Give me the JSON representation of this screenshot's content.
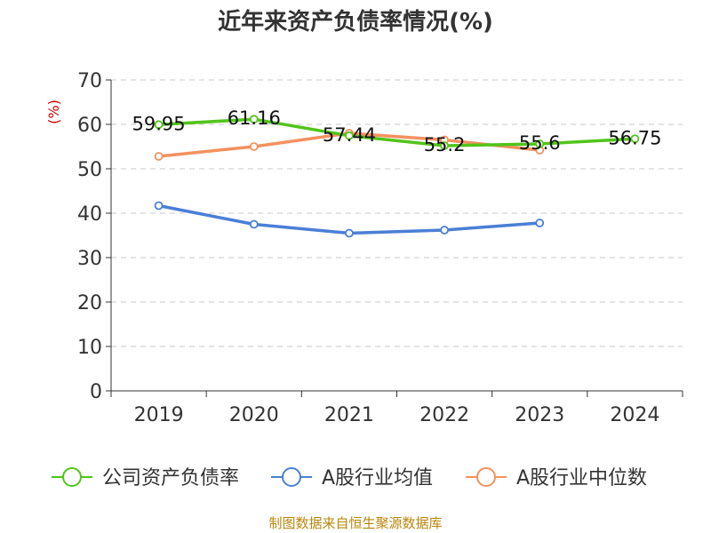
{
  "chart_data": {
    "type": "line",
    "title": "近年来资产负债率情况(%)",
    "ylabel": "(%)",
    "categories": [
      "2019",
      "2020",
      "2021",
      "2022",
      "2023",
      "2024"
    ],
    "ylim": [
      0,
      70
    ],
    "yticks": [
      0,
      10,
      20,
      30,
      40,
      50,
      60,
      70
    ],
    "grid": true,
    "legend_position": "bottom",
    "series": [
      {
        "name": "公司资产负债率",
        "color": "#52c41a",
        "values": [
          59.95,
          61.16,
          57.44,
          55.2,
          55.6,
          56.75
        ],
        "labels": [
          "59.95",
          "61.16",
          "57.44",
          "55.2",
          "55.6",
          "56.75"
        ]
      },
      {
        "name": "A股行业均值",
        "color": "#4a7fd6",
        "values": [
          41.7,
          37.5,
          35.5,
          36.2,
          37.8,
          null
        ]
      },
      {
        "name": "A股行业中位数",
        "color": "#f4915e",
        "values": [
          52.8,
          55.0,
          58.0,
          56.5,
          54.2,
          null
        ]
      }
    ],
    "source": "制图数据来自恒生聚源数据库"
  }
}
